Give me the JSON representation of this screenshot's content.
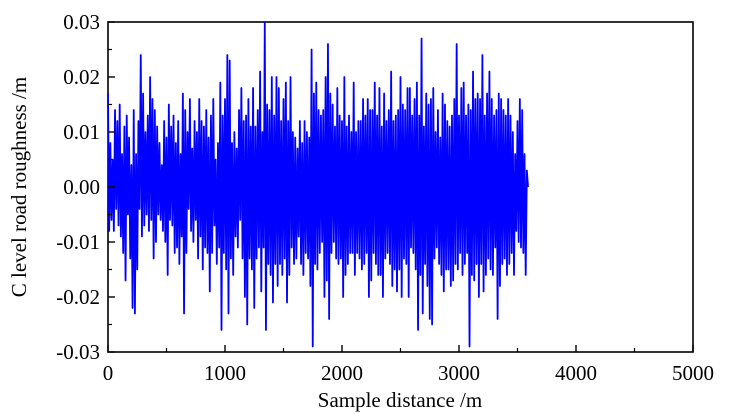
{
  "chart_data": {
    "type": "line",
    "title": "",
    "xlabel": "Sample distance /m",
    "ylabel": "C level road roughness /m",
    "xlim": [
      0,
      5000
    ],
    "ylim": [
      -0.03,
      0.03
    ],
    "x_ticks": [
      0,
      1000,
      2000,
      3000,
      4000,
      5000
    ],
    "x_tick_labels": [
      "0",
      "1000",
      "2000",
      "3000",
      "4000",
      "5000"
    ],
    "y_ticks": [
      -0.03,
      -0.02,
      -0.01,
      0.0,
      0.01,
      0.02,
      0.03
    ],
    "y_tick_labels": [
      "-0.03",
      "-0.02",
      "-0.01",
      "0.00",
      "0.01",
      "0.02",
      "0.03"
    ],
    "grid": false,
    "legend": "none",
    "series": [
      {
        "color": "#0000ff",
        "x_start": 0,
        "x_step": 10,
        "values": [
          0.017,
          -0.008,
          0.008,
          -0.006,
          0.005,
          -0.008,
          0.014,
          -0.004,
          0.012,
          -0.007,
          0.015,
          -0.009,
          0.006,
          -0.012,
          0.011,
          -0.017,
          0.013,
          -0.005,
          0.009,
          -0.013,
          0.004,
          -0.022,
          0.014,
          -0.023,
          0.006,
          -0.015,
          0.012,
          -0.004,
          0.024,
          -0.009,
          0.017,
          -0.007,
          0.01,
          -0.005,
          0.013,
          -0.008,
          0.02,
          -0.006,
          0.016,
          -0.013,
          0.014,
          -0.01,
          0.011,
          -0.005,
          0.008,
          -0.006,
          0.004,
          -0.008,
          0.012,
          -0.01,
          0.009,
          -0.016,
          0.015,
          -0.006,
          0.011,
          -0.007,
          0.013,
          -0.012,
          0.008,
          -0.011,
          0.012,
          -0.014,
          0.006,
          -0.009,
          0.017,
          -0.023,
          0.014,
          -0.012,
          0.01,
          -0.004,
          0.016,
          -0.008,
          0.007,
          -0.01,
          0.012,
          -0.006,
          0.01,
          -0.013,
          0.016,
          -0.009,
          0.012,
          -0.015,
          0.011,
          -0.011,
          0.014,
          -0.012,
          0.009,
          -0.019,
          0.013,
          -0.012,
          0.016,
          -0.007,
          0.005,
          -0.014,
          0.008,
          -0.011,
          0.019,
          -0.026,
          0.013,
          -0.012,
          0.016,
          -0.015,
          0.024,
          -0.023,
          0.023,
          -0.013,
          0.008,
          -0.016,
          0.01,
          -0.009,
          0.007,
          -0.011,
          0.014,
          -0.006,
          0.018,
          -0.013,
          0.012,
          -0.02,
          0.013,
          -0.025,
          0.016,
          -0.013,
          0.011,
          -0.015,
          0.018,
          -0.022,
          0.011,
          -0.013,
          0.014,
          -0.011,
          0.021,
          -0.019,
          0.01,
          -0.011,
          0.03,
          -0.026,
          0.015,
          -0.014,
          0.014,
          -0.016,
          0.02,
          -0.021,
          0.013,
          -0.014,
          0.02,
          -0.018,
          0.018,
          -0.014,
          0.012,
          -0.016,
          0.016,
          -0.013,
          0.019,
          -0.021,
          0.012,
          -0.016,
          0.02,
          -0.011,
          0.01,
          -0.014,
          0.009,
          -0.013,
          0.007,
          -0.009,
          0.012,
          -0.014,
          0.008,
          -0.016,
          0.012,
          -0.012,
          0.01,
          -0.013,
          0.009,
          -0.018,
          0.025,
          -0.029,
          0.017,
          -0.014,
          0.019,
          -0.015,
          0.014,
          -0.012,
          0.013,
          -0.01,
          0.014,
          -0.02,
          0.02,
          -0.017,
          0.026,
          -0.024,
          0.017,
          -0.012,
          0.015,
          -0.01,
          0.011,
          -0.013,
          0.018,
          -0.014,
          0.013,
          -0.013,
          0.012,
          -0.02,
          0.02,
          -0.016,
          0.011,
          -0.014,
          0.013,
          -0.012,
          0.01,
          -0.012,
          0.019,
          -0.016,
          0.01,
          -0.012,
          0.012,
          -0.013,
          0.012,
          -0.015,
          0.016,
          -0.014,
          0.013,
          -0.012,
          0.016,
          -0.02,
          0.014,
          -0.017,
          0.014,
          -0.012,
          0.019,
          -0.014,
          0.013,
          -0.016,
          0.018,
          -0.016,
          0.011,
          -0.02,
          0.017,
          -0.013,
          0.012,
          -0.012,
          0.014,
          -0.014,
          0.021,
          -0.018,
          0.012,
          -0.015,
          0.013,
          -0.019,
          0.014,
          -0.015,
          0.02,
          -0.02,
          0.015,
          -0.013,
          0.014,
          -0.014,
          0.018,
          -0.02,
          0.018,
          -0.011,
          0.013,
          -0.012,
          0.016,
          -0.015,
          0.019,
          -0.026,
          0.013,
          -0.016,
          0.027,
          -0.023,
          0.011,
          -0.014,
          0.017,
          -0.018,
          0.015,
          -0.024,
          0.016,
          -0.025,
          0.018,
          -0.013,
          0.01,
          -0.011,
          0.014,
          -0.014,
          0.009,
          -0.016,
          0.017,
          -0.019,
          0.015,
          -0.015,
          0.012,
          -0.015,
          0.011,
          -0.018,
          0.013,
          -0.017,
          0.016,
          -0.014,
          0.026,
          -0.015,
          0.013,
          -0.012,
          0.018,
          -0.016,
          0.019,
          -0.014,
          0.013,
          -0.012,
          0.015,
          -0.029,
          0.014,
          -0.016,
          0.021,
          -0.017,
          0.016,
          -0.014,
          0.017,
          -0.02,
          0.016,
          -0.014,
          0.024,
          -0.019,
          0.013,
          -0.016,
          0.017,
          -0.013,
          0.021,
          -0.015,
          0.016,
          -0.016,
          0.013,
          -0.011,
          0.014,
          -0.024,
          0.017,
          -0.018,
          0.016,
          -0.014,
          0.014,
          -0.013,
          0.013,
          -0.016,
          0.016,
          -0.014,
          0.013,
          -0.012,
          0.01,
          -0.016,
          0.006,
          -0.008,
          0.012,
          -0.01,
          0.016,
          -0.011,
          0.014,
          -0.012,
          0.006,
          -0.016,
          0.003,
          0.0
        ]
      }
    ]
  }
}
